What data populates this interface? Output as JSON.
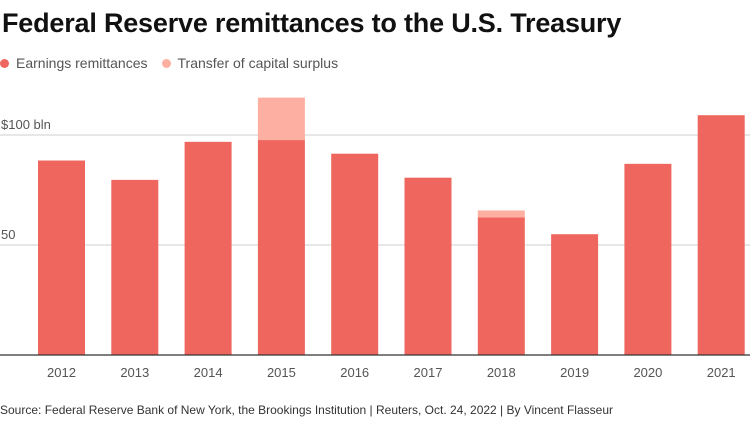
{
  "title": "Federal Reserve remittances to the U.S. Treasury",
  "legend": [
    {
      "label": "Earnings remittances",
      "color": "#ef665f"
    },
    {
      "label": "Transfer of capital surplus",
      "color": "#fdb0a1"
    }
  ],
  "source": "Source: Federal Reserve Bank of New York, the Brookings Institution | Reuters, Oct. 24, 2022 | By Vincent Flasseur",
  "chart_data": {
    "type": "bar",
    "stacked": true,
    "categories": [
      "2012",
      "2013",
      "2014",
      "2015",
      "2016",
      "2017",
      "2018",
      "2019",
      "2020",
      "2021"
    ],
    "series": [
      {
        "name": "Earnings remittances",
        "color": "#ef665f",
        "values": [
          88.4,
          79.6,
          96.9,
          97.7,
          91.5,
          80.6,
          62.5,
          54.9,
          86.9,
          109.0
        ]
      },
      {
        "name": "Transfer of capital surplus",
        "color": "#fdb0a1",
        "values": [
          0,
          0,
          0,
          19.3,
          0,
          0,
          3.2,
          0,
          0,
          0
        ]
      }
    ],
    "ylim": [
      0,
      120
    ],
    "yticks": [
      {
        "value": 50,
        "label": "50"
      },
      {
        "value": 100,
        "label": "$100 bln"
      }
    ],
    "grid": true
  }
}
